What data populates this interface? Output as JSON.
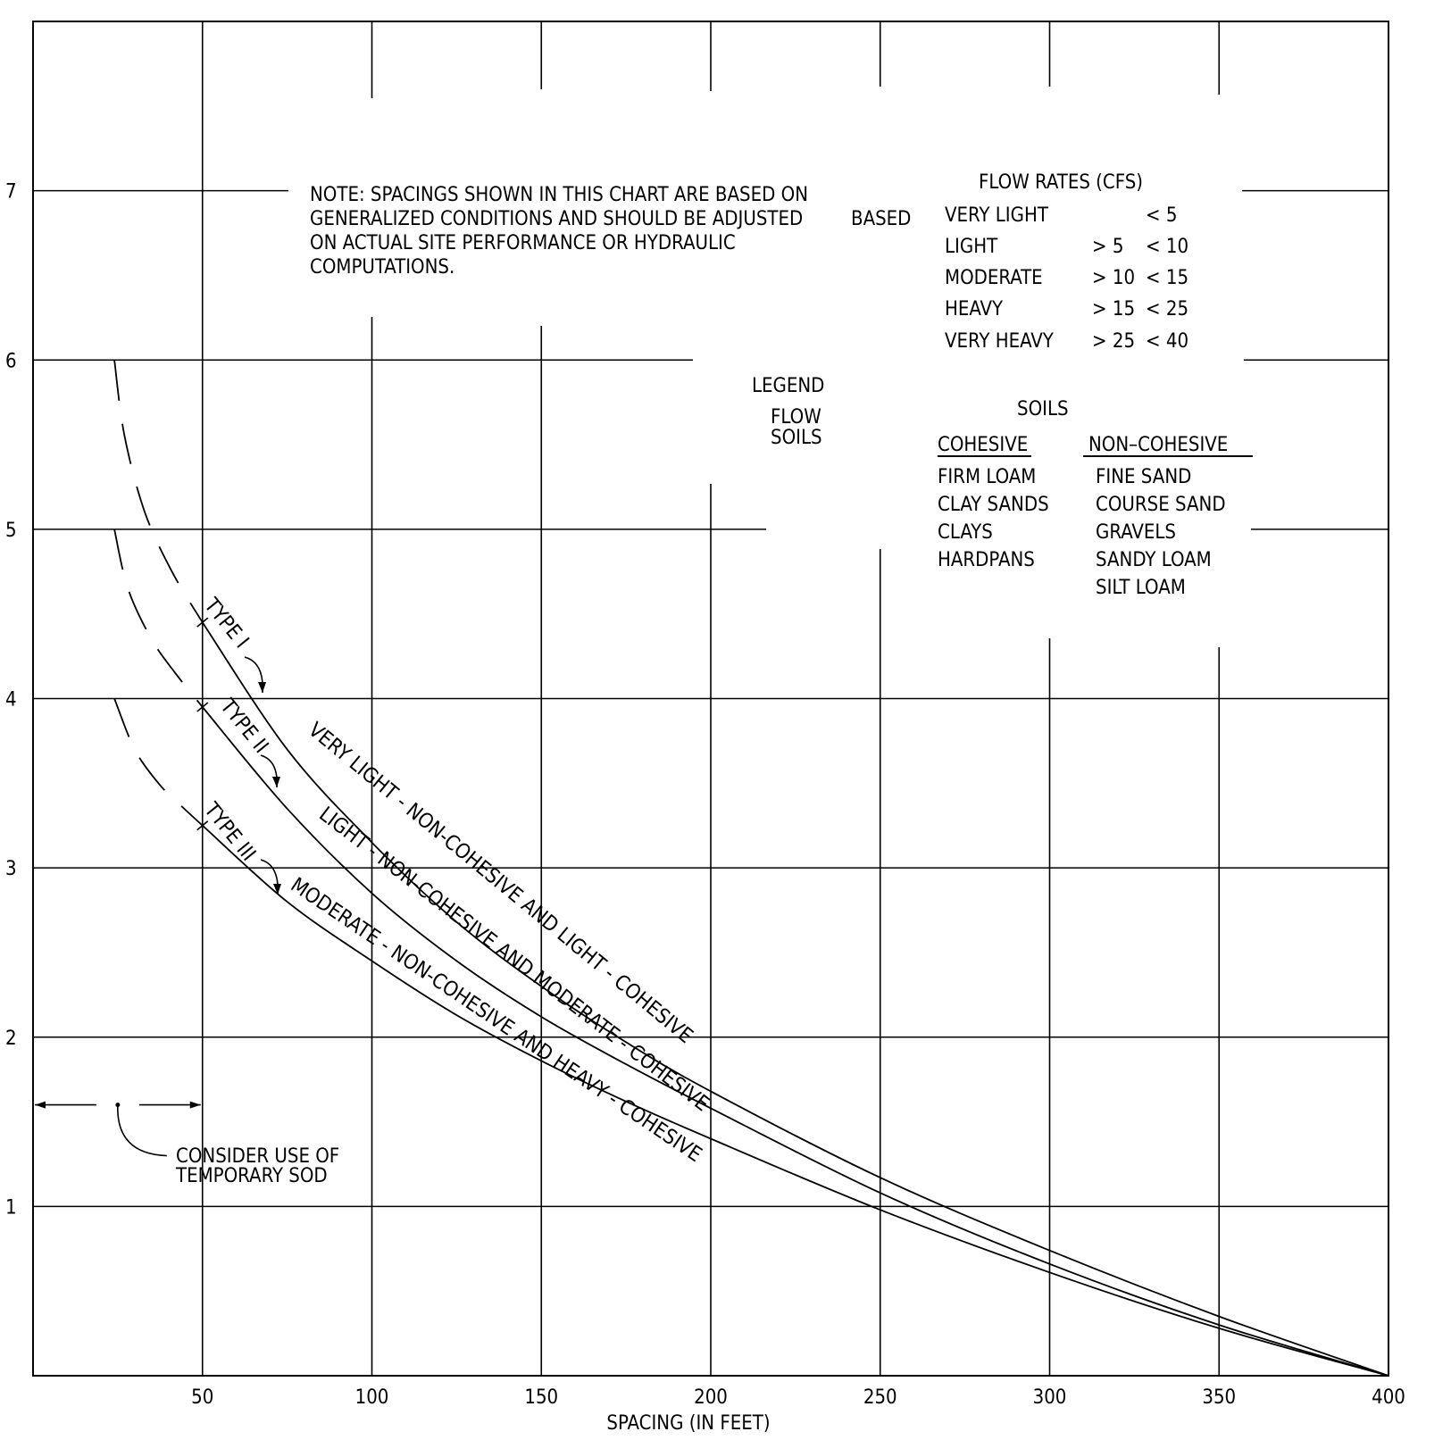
{
  "chart_data": {
    "type": "line",
    "xlabel": "SPACING (IN FEET)",
    "ylabel": "",
    "xlim": [
      0,
      400
    ],
    "ylim": [
      0,
      8
    ],
    "x_ticks": [
      "50",
      "100",
      "150",
      "200",
      "250",
      "300",
      "350",
      "400"
    ],
    "y_ticks": [
      "1",
      "2",
      "3",
      "4",
      "5",
      "6",
      "7"
    ],
    "grid": true,
    "series": [
      {
        "name": "TYPE I",
        "label": "VERY LIGHT - NON-COHESIVE AND LIGHT - COHESIVE",
        "x": [
          50,
          75,
          100,
          125,
          150,
          175,
          200,
          250,
          300,
          350,
          400
        ],
        "y": [
          4.45,
          3.7,
          3.15,
          2.68,
          2.3,
          1.97,
          1.68,
          1.17,
          0.74,
          0.35,
          0
        ],
        "dashed_extension": {
          "x": [
            24,
            27,
            33,
            41,
            50
          ],
          "y": [
            6.0,
            5.55,
            5.1,
            4.75,
            4.45
          ]
        }
      },
      {
        "name": "TYPE II",
        "label": "LIGHT - NON-COHESIVE AND MODERATE - COHESIVE",
        "x": [
          50,
          75,
          100,
          125,
          150,
          175,
          200,
          250,
          300,
          350,
          400
        ],
        "y": [
          3.95,
          3.35,
          2.85,
          2.45,
          2.12,
          1.84,
          1.58,
          1.08,
          0.66,
          0.3,
          0
        ],
        "dashed_extension": {
          "x": [
            24,
            28,
            35,
            42,
            50
          ],
          "y": [
            5.0,
            4.65,
            4.35,
            4.15,
            3.95
          ]
        }
      },
      {
        "name": "TYPE III",
        "label": "MODERATE - NON-COHESIVE AND HEAVY - COHESIVE",
        "x": [
          50,
          75,
          100,
          125,
          150,
          175,
          200,
          250,
          300,
          350,
          400
        ],
        "y": [
          3.25,
          2.8,
          2.45,
          2.13,
          1.86,
          1.62,
          1.4,
          0.98,
          0.61,
          0.28,
          0
        ],
        "dashed_extension": {
          "x": [
            24,
            30,
            37,
            43,
            50
          ],
          "y": [
            4.0,
            3.7,
            3.5,
            3.38,
            3.25
          ]
        }
      }
    ],
    "sod_zone": {
      "x_range": [
        0,
        50
      ],
      "y": 1.6
    },
    "annotations": {
      "sod": [
        "CONSIDER USE OF",
        "TEMPORARY SOD"
      ],
      "note": [
        "NOTE:  SPACINGS SHOWN IN THIS CHART ARE BASED ON",
        "GENERALIZED CONDITIONS AND SHOULD BE ADJUSTED",
        "ON ACTUAL SITE PERFORMANCE OR HYDRAULIC",
        "COMPUTATIONS."
      ],
      "based": "BASED",
      "legend": "LEGEND",
      "legend_flow": "FLOW",
      "legend_soils": "SOILS"
    },
    "flow_rates": {
      "title": "FLOW RATES (CFS)",
      "rows": [
        {
          "name": "VERY LIGHT",
          "gt": "",
          "lt": "< 5"
        },
        {
          "name": "LIGHT",
          "gt": "> 5",
          "lt": "< 10"
        },
        {
          "name": "MODERATE",
          "gt": "> 10",
          "lt": "< 15"
        },
        {
          "name": "HEAVY",
          "gt": "> 15",
          "lt": "< 25"
        },
        {
          "name": "VERY HEAVY",
          "gt": "> 25",
          "lt": "< 40"
        }
      ]
    },
    "soils": {
      "title": "SOILS",
      "cohesive_header": "COHESIVE",
      "noncohesive_header": "NON–COHESIVE",
      "cohesive": [
        "FIRM LOAM",
        "CLAY SANDS",
        "CLAYS",
        "HARDPANS"
      ],
      "noncohesive": [
        "FINE SAND",
        "COURSE SAND",
        "GRAVELS",
        "SANDY LOAM",
        "SILT LOAM"
      ]
    }
  }
}
